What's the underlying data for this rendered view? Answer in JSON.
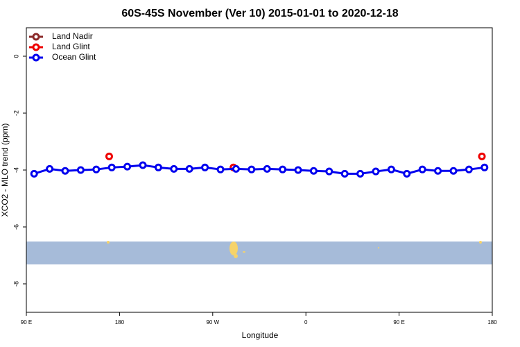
{
  "chart_data": {
    "type": "line",
    "title": "60S-45S November (Ver 10)   2015-01-01 to 2020-12-18",
    "xlabel": "Longitude",
    "ylabel": "XCO2 - MLO trend (ppm)",
    "xlim": [
      90,
      540
    ],
    "ylim": [
      -9,
      1
    ],
    "xticks": [
      {
        "value": 90,
        "label": "90 E"
      },
      180,
      {
        "value": 270,
        "label": "90 W"
      },
      {
        "value": 360,
        "label": "0"
      },
      {
        "value": 450,
        "label": "90 E"
      },
      {
        "value": 540,
        "label": "180"
      }
    ],
    "yticks": [
      0,
      -2,
      -4,
      -6,
      -8
    ],
    "legend": "top-left",
    "series": [
      {
        "name": "Land Nadir",
        "color": "#8b2a2a",
        "x": [],
        "values": []
      },
      {
        "name": "Land Glint",
        "color": "#ee0000",
        "x": [
          170,
          290,
          530
        ],
        "values": [
          -3.52,
          -3.91,
          -3.52
        ],
        "lines": false
      },
      {
        "name": "Ocean Glint",
        "color": "#0000ee",
        "x": [
          97.5,
          112.5,
          127.5,
          142.5,
          157.5,
          172.5,
          187.5,
          202.5,
          217.5,
          232.5,
          247.5,
          262.5,
          277.5,
          292.5,
          307.5,
          322.5,
          337.5,
          352.5,
          367.5,
          382.5,
          397.5,
          412.5,
          427.5,
          442.5,
          457.5,
          472.5,
          487.5,
          502.5,
          517.5,
          532.5
        ],
        "values": [
          -4.13,
          -3.96,
          -4.03,
          -4.0,
          -3.98,
          -3.91,
          -3.88,
          -3.83,
          -3.91,
          -3.96,
          -3.96,
          -3.91,
          -3.98,
          -3.96,
          -3.98,
          -3.96,
          -3.98,
          -4.0,
          -4.03,
          -4.05,
          -4.13,
          -4.13,
          -4.05,
          -3.98,
          -4.13,
          -3.98,
          -4.03,
          -4.03,
          -3.98,
          -3.91
        ],
        "lines": true
      }
    ]
  }
}
